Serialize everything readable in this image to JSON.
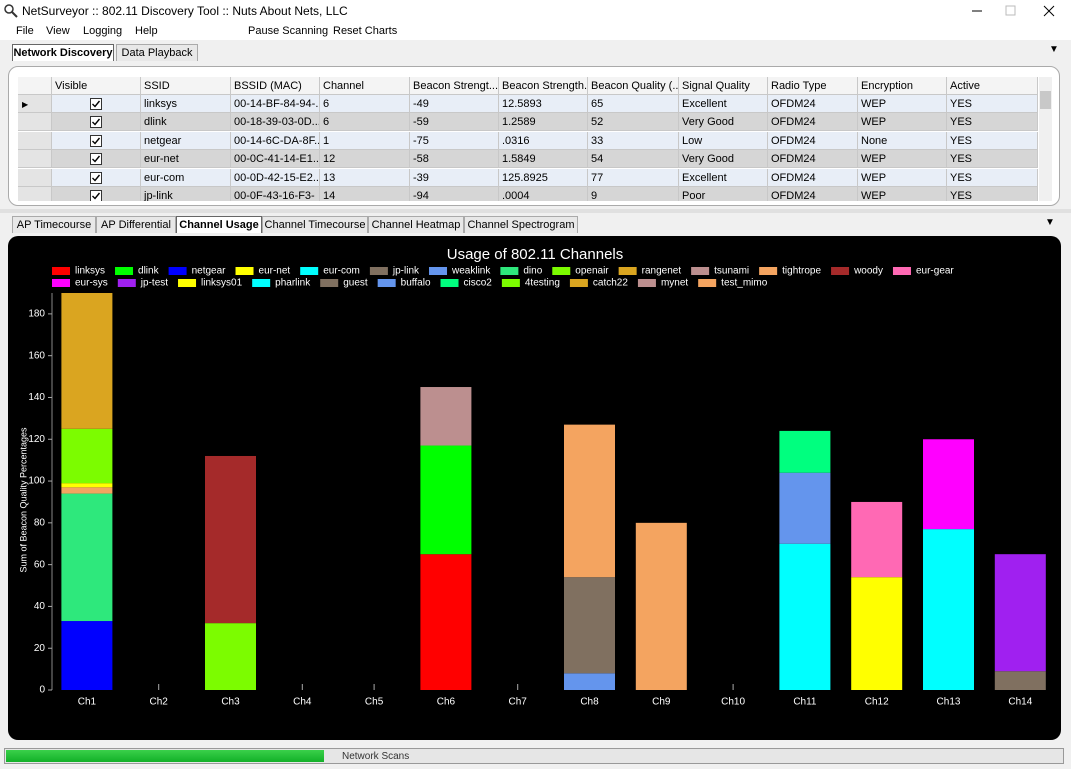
{
  "window": {
    "title": "NetSurveyor :: 802.11 Discovery Tool :: Nuts About Nets, LLC"
  },
  "menu": [
    "File",
    "View",
    "Logging",
    "Help",
    "Pause Scanning",
    "Reset Charts"
  ],
  "top_tabs": [
    "Network Discovery",
    "Data Playback"
  ],
  "table": {
    "columns": [
      "Visible",
      "SSID",
      "BSSID (MAC)",
      "Channel",
      "Beacon Strengt...",
      "Beacon Strength...",
      "Beacon Quality (...",
      "Signal Quality",
      "Radio Type",
      "Encryption",
      "Active"
    ],
    "rows": [
      [
        "linksys",
        "00-14-BF-84-94-...",
        "6",
        "-49",
        "12.5893",
        "65",
        "Excellent",
        "OFDM24",
        "WEP",
        "YES"
      ],
      [
        "dlink",
        "00-18-39-03-0D...",
        "6",
        "-59",
        "1.2589",
        "52",
        "Very Good",
        "OFDM24",
        "WEP",
        "YES"
      ],
      [
        "netgear",
        "00-14-6C-DA-8F...",
        "1",
        "-75",
        ".0316",
        "33",
        "Low",
        "OFDM24",
        "None",
        "YES"
      ],
      [
        "eur-net",
        "00-0C-41-14-E1...",
        "12",
        "-58",
        "1.5849",
        "54",
        "Very Good",
        "OFDM24",
        "WEP",
        "YES"
      ],
      [
        "eur-com",
        "00-0D-42-15-E2...",
        "13",
        "-39",
        "125.8925",
        "77",
        "Excellent",
        "OFDM24",
        "WEP",
        "YES"
      ],
      [
        "jp-link",
        "00-0F-43-16-F3-",
        "14",
        "-94",
        ".0004",
        "9",
        "Poor",
        "OFDM24",
        "WEP",
        "YES"
      ]
    ]
  },
  "chart_tabs": [
    "AP Timecourse",
    "AP Differential",
    "Channel Usage",
    "Channel Timecourse",
    "Channel Heatmap",
    "Channel Spectrogram"
  ],
  "chart_data": {
    "type": "stacked_bar",
    "title": "Usage of 802.11 Channels",
    "y_label": "Sum of Beacon Quality Percentages",
    "categories": [
      "Ch1",
      "Ch2",
      "Ch3",
      "Ch4",
      "Ch5",
      "Ch6",
      "Ch7",
      "Ch8",
      "Ch9",
      "Ch10",
      "Ch11",
      "Ch12",
      "Ch13",
      "Ch14"
    ],
    "ylim": [
      0,
      190
    ],
    "yticks": [
      0,
      20,
      40,
      60,
      80,
      100,
      120,
      140,
      160,
      180
    ],
    "series": [
      {
        "name": "linksys",
        "color": "#ff0000",
        "values": [
          null,
          null,
          null,
          null,
          null,
          65,
          null,
          null,
          null,
          null,
          null,
          null,
          null,
          null
        ]
      },
      {
        "name": "dlink",
        "color": "#00ff00",
        "values": [
          null,
          null,
          null,
          null,
          null,
          52,
          null,
          null,
          null,
          null,
          null,
          null,
          null,
          null
        ]
      },
      {
        "name": "netgear",
        "color": "#0000ff",
        "values": [
          33,
          null,
          null,
          null,
          null,
          null,
          null,
          null,
          null,
          null,
          null,
          null,
          null,
          null
        ]
      },
      {
        "name": "eur-net",
        "color": "#ffff00",
        "values": [
          null,
          null,
          null,
          null,
          null,
          null,
          null,
          null,
          null,
          null,
          null,
          54,
          null,
          null
        ]
      },
      {
        "name": "eur-com",
        "color": "#00ffff",
        "values": [
          null,
          null,
          null,
          null,
          null,
          null,
          null,
          null,
          null,
          null,
          null,
          null,
          77,
          null
        ]
      },
      {
        "name": "jp-link",
        "color": "#807060",
        "values": [
          null,
          null,
          null,
          null,
          null,
          null,
          null,
          null,
          null,
          null,
          null,
          null,
          null,
          9
        ]
      },
      {
        "name": "weaklink",
        "color": "#6495ed",
        "values": [
          null,
          null,
          null,
          null,
          null,
          null,
          null,
          8,
          null,
          null,
          null,
          null,
          null,
          null
        ]
      },
      {
        "name": "dino",
        "color": "#2ee87c",
        "values": [
          61,
          null,
          null,
          null,
          null,
          null,
          null,
          null,
          null,
          null,
          null,
          null,
          null,
          null
        ]
      },
      {
        "name": "openair",
        "color": "#7cfc00",
        "values": [
          null,
          null,
          32,
          null,
          null,
          null,
          null,
          null,
          null,
          null,
          null,
          null,
          null,
          null
        ]
      },
      {
        "name": "rangenet",
        "color": "#daa520",
        "values": [
          null,
          null,
          null,
          null,
          null,
          null,
          null,
          null,
          null,
          null,
          null,
          null,
          null,
          null
        ]
      },
      {
        "name": "tsunami",
        "color": "#bc8f8f",
        "values": [
          null,
          null,
          null,
          null,
          null,
          28,
          null,
          null,
          null,
          null,
          null,
          null,
          null,
          null
        ]
      },
      {
        "name": "tightrope",
        "color": "#f4a460",
        "values": [
          3,
          null,
          null,
          null,
          null,
          null,
          null,
          null,
          80,
          null,
          null,
          null,
          null,
          null
        ]
      },
      {
        "name": "woody",
        "color": "#a52a2a",
        "values": [
          null,
          null,
          80,
          null,
          null,
          null,
          null,
          null,
          null,
          null,
          null,
          null,
          null,
          null
        ]
      },
      {
        "name": "eur-gear",
        "color": "#ff69b4",
        "values": [
          null,
          null,
          null,
          null,
          null,
          null,
          null,
          null,
          null,
          null,
          null,
          36,
          null,
          null
        ]
      },
      {
        "name": "eur-sys",
        "color": "#ff00ff",
        "values": [
          null,
          null,
          null,
          null,
          null,
          null,
          null,
          null,
          null,
          null,
          null,
          null,
          43,
          null
        ]
      },
      {
        "name": "jp-test",
        "color": "#a020f0",
        "values": [
          null,
          null,
          null,
          null,
          null,
          null,
          null,
          null,
          null,
          null,
          null,
          null,
          null,
          56
        ]
      },
      {
        "name": "linksys01",
        "color": "#ffff00",
        "values": [
          2,
          null,
          null,
          null,
          null,
          null,
          null,
          null,
          null,
          null,
          null,
          null,
          null,
          null
        ]
      },
      {
        "name": "pharlink",
        "color": "#00ffff",
        "values": [
          null,
          null,
          null,
          null,
          null,
          null,
          null,
          null,
          null,
          null,
          70,
          null,
          null,
          null
        ]
      },
      {
        "name": "guest",
        "color": "#807060",
        "values": [
          null,
          null,
          null,
          null,
          null,
          null,
          null,
          46,
          null,
          null,
          null,
          null,
          null,
          null
        ]
      },
      {
        "name": "buffalo",
        "color": "#6495ed",
        "values": [
          null,
          null,
          null,
          null,
          null,
          null,
          null,
          null,
          null,
          null,
          34,
          null,
          null,
          null
        ]
      },
      {
        "name": "cisco2",
        "color": "#00ff7f",
        "values": [
          null,
          null,
          null,
          null,
          null,
          null,
          null,
          null,
          null,
          null,
          20,
          null,
          null,
          null
        ]
      },
      {
        "name": "4testing",
        "color": "#7cfc00",
        "values": [
          26,
          null,
          null,
          null,
          null,
          null,
          null,
          null,
          null,
          null,
          null,
          null,
          null,
          null
        ]
      },
      {
        "name": "catch22",
        "color": "#daa520",
        "values": [
          65,
          null,
          null,
          null,
          null,
          null,
          null,
          null,
          null,
          null,
          null,
          null,
          null,
          null
        ]
      },
      {
        "name": "mynet",
        "color": "#bc8f8f",
        "values": [
          null,
          null,
          null,
          null,
          null,
          null,
          null,
          null,
          null,
          null,
          null,
          null,
          null,
          null
        ]
      },
      {
        "name": "test_mimo",
        "color": "#f4a460",
        "values": [
          null,
          null,
          null,
          null,
          null,
          null,
          null,
          73,
          null,
          null,
          null,
          null,
          null,
          null
        ]
      }
    ]
  },
  "status": {
    "label": "Network Scans"
  }
}
